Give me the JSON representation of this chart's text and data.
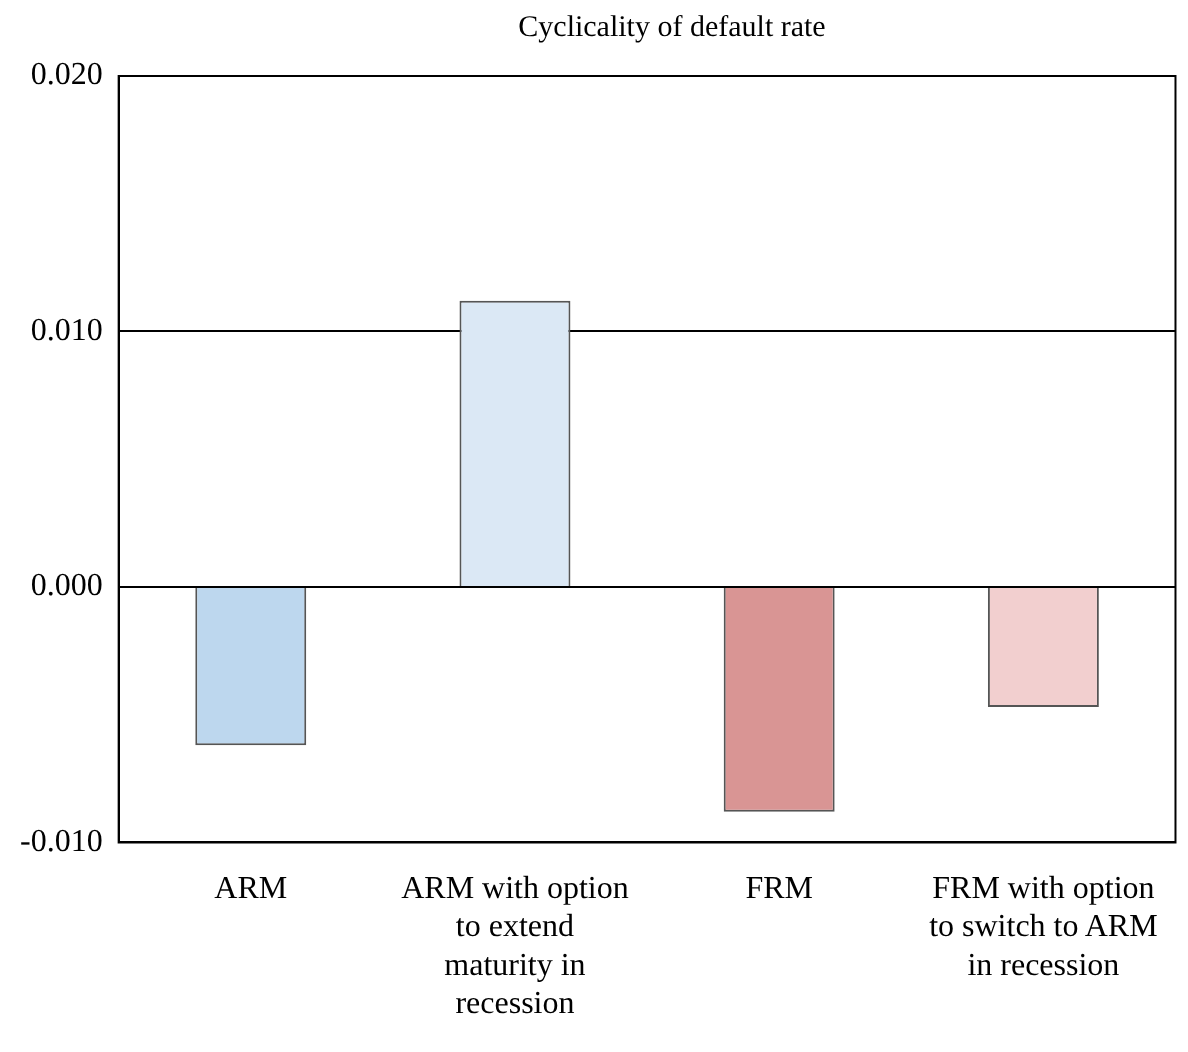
{
  "chart_data": {
    "type": "bar",
    "title": "Cyclicality of default rate",
    "categories": [
      "ARM",
      "ARM with option to extend maturity in recession",
      "FRM",
      "FRM with option to switch to ARM in recession"
    ],
    "values": [
      -0.0062,
      0.0112,
      -0.0088,
      -0.0047
    ],
    "colors": [
      "#bdd7ee",
      "#dbe8f5",
      "#d99594",
      "#f2cfcf"
    ],
    "ylim": [
      -0.01,
      0.02
    ],
    "yticks": [
      {
        "value": -0.01,
        "label": "-0.010"
      },
      {
        "value": 0,
        "label": "0.000"
      },
      {
        "value": 0.01,
        "label": "0.010"
      },
      {
        "value": 0.02,
        "label": "0.020"
      }
    ],
    "grid": "y",
    "legend": false
  }
}
